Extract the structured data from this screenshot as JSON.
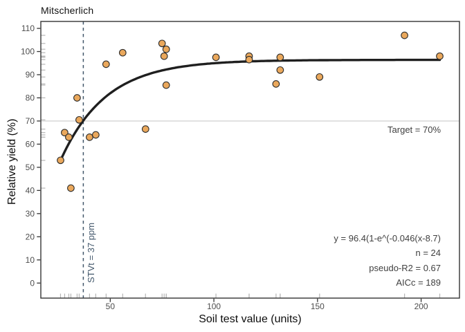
{
  "title": "Mitscherlich",
  "x_axis": {
    "label": "Soil test value (units)",
    "tick_values": [
      50,
      100,
      150,
      200
    ]
  },
  "y_axis": {
    "label": "Relative yield (%)",
    "tick_values": [
      0,
      10,
      20,
      30,
      40,
      50,
      60,
      70,
      80,
      90,
      100,
      110
    ]
  },
  "chart_data": {
    "type": "scatter",
    "title": "Mitscherlich",
    "xlabel": "Soil test value (units)",
    "ylabel": "Relative yield (%)",
    "x_domain": [
      16.5,
      218.5
    ],
    "y_domain": [
      -6.5,
      113
    ],
    "x_ticks": [
      50,
      100,
      150,
      200
    ],
    "y_ticks": [
      0,
      10,
      20,
      30,
      40,
      50,
      60,
      70,
      80,
      90,
      100,
      110
    ],
    "points": [
      [
        26,
        53
      ],
      [
        28,
        65
      ],
      [
        30,
        63
      ],
      [
        31,
        41
      ],
      [
        34,
        80
      ],
      [
        35,
        70.5
      ],
      [
        40,
        63
      ],
      [
        43,
        64
      ],
      [
        48,
        94.5
      ],
      [
        56,
        99.5
      ],
      [
        67,
        66.5
      ],
      [
        75,
        103.5
      ],
      [
        76,
        98
      ],
      [
        77,
        101
      ],
      [
        77,
        85.5
      ],
      [
        101,
        97.5
      ],
      [
        117,
        98
      ],
      [
        117,
        96.5
      ],
      [
        130,
        86
      ],
      [
        132,
        97.5
      ],
      [
        132,
        92
      ],
      [
        151,
        89
      ],
      [
        192,
        107
      ],
      [
        209,
        98
      ]
    ],
    "n_points": 24,
    "fit_curve": {
      "model": "Mitscherlich",
      "A": 96.4,
      "c": 0.046,
      "x0": 8.7,
      "x_range": [
        26,
        209
      ]
    },
    "target_line": {
      "y": 70,
      "label": "Target = 70%"
    },
    "stv_line": {
      "x": 37,
      "label": "STVt = 37 ppm"
    },
    "rug": {
      "sides": "bottom-left"
    },
    "annotations": {
      "equation": "y = 96.4(1-e^(-0.046(x-8.7)",
      "n": "n = 24",
      "pseudo_r2": "pseudo-R2 = 0.67",
      "aicc": "AICc = 189"
    }
  },
  "colors": {
    "point_fill": "#EAA85C",
    "point_stroke": "#2b2b2b",
    "curve": "#1f1f1f",
    "target_line": "#c9c9c9",
    "stv_line": "#41566a",
    "panel_border": "#333333",
    "tick_text": "#4d4d4d",
    "rug": "#b5b5b5",
    "annotation_text": "#3f3f3f"
  }
}
